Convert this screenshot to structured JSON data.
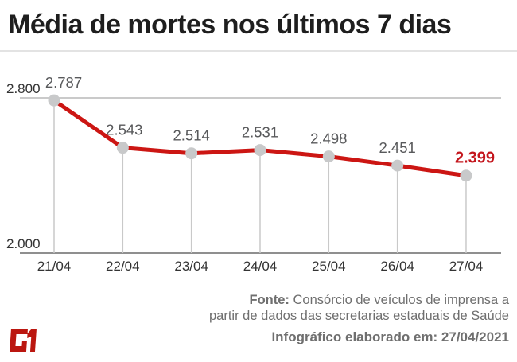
{
  "header": {
    "title": "Média de mortes nos últimos 7 dias"
  },
  "chart_data": {
    "type": "line",
    "title": "Média de mortes nos últimos 7 dias",
    "x": [
      "21/04",
      "22/04",
      "23/04",
      "24/04",
      "25/04",
      "26/04",
      "27/04"
    ],
    "values": [
      2787,
      2543,
      2514,
      2531,
      2498,
      2451,
      2399
    ],
    "point_labels": [
      "2.787",
      "2.543",
      "2.514",
      "2.531",
      "2.498",
      "2.451",
      "2.399"
    ],
    "label_dx": [
      12,
      2,
      0,
      0,
      0,
      0,
      11
    ],
    "highlight_last_point": true,
    "y_ticks": [
      {
        "label": "2.800",
        "value": 2800
      },
      {
        "label": "2.000",
        "value": 2000
      }
    ],
    "ylim": [
      2000,
      2800
    ],
    "xlabel": "",
    "ylabel": "",
    "legend": "none",
    "grid": "horizontal line at 2.800, baseline at 2.000, vertical dropline per point",
    "colors": {
      "line": "#cc1613",
      "marker": "#c8c9ca",
      "point_label": "#58595b",
      "highlight_label": "#c4161d",
      "gridline": "#b9b9b9",
      "axis_line": "#8f8f8f",
      "dropline": "#c9c9c9",
      "tick_text": "#333333"
    }
  },
  "footer": {
    "source_label": "Fonte:",
    "source_line1": "Consórcio de veículos de imprensa a",
    "source_line2": "partir de dados das secretarias estaduais de Saúde",
    "elaborated": "Infográfico elaborado em: 27/04/2021",
    "logo_text": "G1",
    "logo_color": "#bb1710"
  }
}
